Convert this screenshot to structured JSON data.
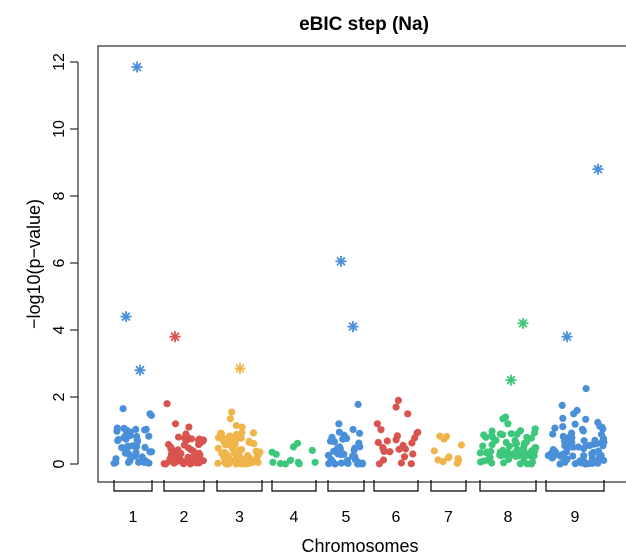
{
  "chart_data": {
    "type": "scatter",
    "title": "eBIC step (Na)",
    "xlabel": "Chromosomes",
    "ylabel": "−log10(p−value)",
    "ylim": [
      -0.4,
      12.4
    ],
    "yticks": [
      "0",
      "2",
      "4",
      "6",
      "8",
      "10",
      "12"
    ],
    "chromosomes": [
      {
        "label": "1",
        "color": "#4A90D9"
      },
      {
        "label": "2",
        "color": "#D9534F"
      },
      {
        "label": "3",
        "color": "#F0B54A"
      },
      {
        "label": "4",
        "color": "#3CC77A"
      },
      {
        "label": "5",
        "color": "#4A90D9"
      },
      {
        "label": "6",
        "color": "#D9534F"
      },
      {
        "label": "7",
        "color": "#F0B54A"
      },
      {
        "label": "8",
        "color": "#3CC77A"
      },
      {
        "label": "9",
        "color": "#4A90D9"
      }
    ],
    "significant_markers": [
      {
        "chromosome": "1",
        "value": 11.85
      },
      {
        "chromosome": "1",
        "value": 4.4
      },
      {
        "chromosome": "1",
        "value": 2.8
      },
      {
        "chromosome": "2",
        "value": 3.8
      },
      {
        "chromosome": "3",
        "value": 2.85
      },
      {
        "chromosome": "5",
        "value": 6.05
      },
      {
        "chromosome": "5",
        "value": 4.1
      },
      {
        "chromosome": "8",
        "value": 4.2
      },
      {
        "chromosome": "8",
        "value": 2.5
      },
      {
        "chromosome": "9",
        "value": 8.8
      },
      {
        "chromosome": "9",
        "value": 3.8
      }
    ],
    "grid": false,
    "legend": "none"
  }
}
